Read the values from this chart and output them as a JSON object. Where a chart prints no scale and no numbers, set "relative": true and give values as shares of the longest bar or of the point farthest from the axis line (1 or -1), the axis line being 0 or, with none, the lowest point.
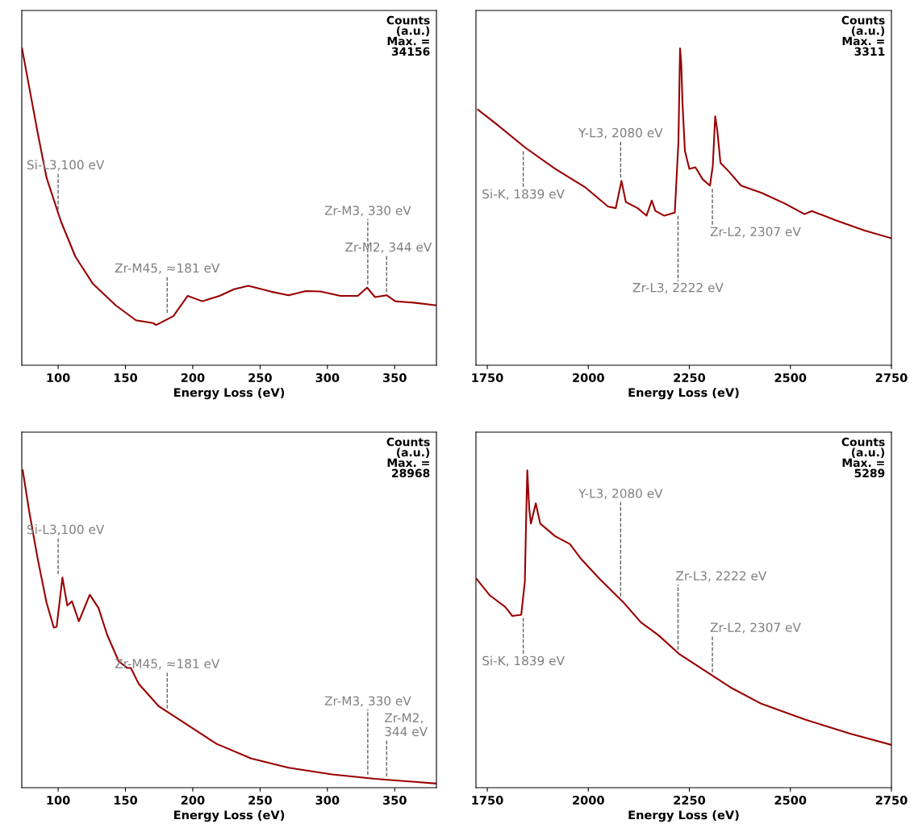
{
  "chart_data": [
    {
      "type": "line",
      "relative": true,
      "xlabel": "Energy Loss (eV)",
      "xlim": [
        73,
        381
      ],
      "xticks": [
        100,
        150,
        200,
        250,
        300,
        350
      ],
      "series": [
        {
          "color": "#990000",
          "x": [
            73.2,
            78.6,
            85,
            91.4,
            102,
            112.8,
            125.7,
            142.8,
            157.8,
            170.6,
            172.8,
            185.6,
            196.3,
            207,
            219.9,
            230.6,
            241.3,
            258.4,
            271.2,
            284.1,
            294.8,
            309.8,
            322.6,
            329.5,
            335.4,
            344,
            350.4,
            365.4,
            381
          ],
          "values": [
            1.0,
            0.876,
            0.73,
            0.592,
            0.455,
            0.343,
            0.258,
            0.189,
            0.142,
            0.133,
            0.127,
            0.155,
            0.219,
            0.202,
            0.219,
            0.24,
            0.251,
            0.232,
            0.221,
            0.234,
            0.233,
            0.219,
            0.219,
            0.245,
            0.215,
            0.221,
            0.202,
            0.197,
            0.189
          ]
        }
      ],
      "annotations": [
        "Counts\n(a.u.)\nMax. =\n34156"
      ],
      "ref_lines": [
        {
          "axis": "x",
          "value": 100,
          "label": "Si-L3,100 eV",
          "line_style": "dashed",
          "color": "#555555"
        },
        {
          "axis": "x",
          "value": 181,
          "label": "Zr-M45, ≈181 eV",
          "line_style": "dashed",
          "color": "#555555"
        },
        {
          "axis": "x",
          "value": 330,
          "label": "Zr-M3, 330 eV",
          "line_style": "dashed",
          "color": "#555555"
        },
        {
          "axis": "x",
          "value": 344,
          "label": "Zr-M2, 344 eV",
          "line_style": "dashed",
          "color": "#555555"
        }
      ]
    },
    {
      "type": "line",
      "relative": true,
      "xlabel": "Energy Loss (eV)",
      "xlim": [
        1722,
        2750
      ],
      "xticks": [
        1750,
        2000,
        2250,
        2500,
        2750
      ],
      "series": [
        {
          "color": "#990000",
          "x": [
            1727,
            1772,
            1845,
            1918,
            1991,
            2049,
            2068,
            2082,
            2093,
            2122,
            2144,
            2157,
            2166,
            2188,
            2214,
            2223,
            2227,
            2230,
            2233,
            2239,
            2250,
            2265,
            2283,
            2301,
            2308,
            2314,
            2319,
            2327,
            2349,
            2378,
            2429,
            2487,
            2535,
            2553,
            2611,
            2684,
            2750
          ],
          "values": [
            0.807,
            0.762,
            0.686,
            0.62,
            0.563,
            0.501,
            0.496,
            0.582,
            0.515,
            0.496,
            0.472,
            0.52,
            0.487,
            0.472,
            0.482,
            0.705,
            1.0,
            0.952,
            0.829,
            0.677,
            0.62,
            0.625,
            0.587,
            0.567,
            0.629,
            0.786,
            0.743,
            0.639,
            0.61,
            0.567,
            0.544,
            0.51,
            0.477,
            0.487,
            0.458,
            0.425,
            0.401
          ]
        }
      ],
      "annotations": [
        "Counts\n(a.u.)\nMax. =\n3311"
      ],
      "ref_lines": [
        {
          "axis": "x",
          "value": 1839,
          "label": "Si-K, 1839 eV",
          "line_style": "dashed",
          "color": "#555555"
        },
        {
          "axis": "x",
          "value": 2080,
          "label": "Y-L3, 2080 eV",
          "line_style": "dashed",
          "color": "#555555"
        },
        {
          "axis": "x",
          "value": 2222,
          "label": "Zr-L3, 2222 eV",
          "line_style": "dashed",
          "color": "#555555"
        },
        {
          "axis": "x",
          "value": 2307,
          "label": "Zr-L2, 2307 eV",
          "line_style": "dashed",
          "color": "#555555"
        }
      ]
    },
    {
      "type": "line",
      "relative": true,
      "xlabel": "Energy Loss (eV)",
      "xlim": [
        73,
        381
      ],
      "xticks": [
        100,
        150,
        200,
        250,
        300,
        350
      ],
      "series": [
        {
          "color": "#990000",
          "x": [
            73.7,
            78.6,
            85,
            91.4,
            96.8,
            98.9,
            103.2,
            106.8,
            110.3,
            115.4,
            123.5,
            130,
            136.4,
            145,
            151.4,
            154,
            159.9,
            174.9,
            196.3,
            217.7,
            243.4,
            271.2,
            303.3,
            335.4,
            381
          ],
          "values": [
            1.0,
            0.868,
            0.717,
            0.583,
            0.504,
            0.507,
            0.662,
            0.574,
            0.587,
            0.524,
            0.608,
            0.566,
            0.482,
            0.398,
            0.377,
            0.377,
            0.327,
            0.256,
            0.197,
            0.138,
            0.092,
            0.063,
            0.042,
            0.028,
            0.013
          ]
        }
      ],
      "annotations": [
        "Counts\n(a.u.)\nMax. =\n28968"
      ],
      "ref_lines": [
        {
          "axis": "x",
          "value": 100,
          "label": "Si-L3,100 eV",
          "line_style": "dashed",
          "color": "#555555"
        },
        {
          "axis": "x",
          "value": 181,
          "label": "Zr-M45, ≈181 eV",
          "line_style": "dashed",
          "color": "#555555"
        },
        {
          "axis": "x",
          "value": 330,
          "label": "Zr-M3, 330 eV",
          "line_style": "dashed",
          "color": "#555555"
        },
        {
          "axis": "x",
          "value": 344,
          "label": "Zr-M2,\n344 eV",
          "line_style": "dashed",
          "color": "#555555"
        }
      ]
    },
    {
      "type": "line",
      "relative": true,
      "xlabel": "Energy Loss (eV)",
      "xlim": [
        1722,
        2750
      ],
      "xticks": [
        1750,
        2000,
        2250,
        2500,
        2750
      ],
      "series": [
        {
          "color": "#990000",
          "x": [
            1724,
            1757,
            1794,
            1812,
            1834,
            1843,
            1846,
            1849,
            1854,
            1858,
            1870,
            1881,
            1918,
            1954,
            1984,
            2027,
            2086,
            2130,
            2173,
            2224,
            2283,
            2356,
            2429,
            2538,
            2648,
            2750
          ],
          "values": [
            0.657,
            0.605,
            0.57,
            0.541,
            0.545,
            0.649,
            0.837,
            1.0,
            0.876,
            0.832,
            0.896,
            0.832,
            0.792,
            0.768,
            0.718,
            0.659,
            0.585,
            0.521,
            0.481,
            0.422,
            0.373,
            0.313,
            0.264,
            0.214,
            0.17,
            0.135
          ]
        }
      ],
      "annotations": [
        "Counts\n(a.u.)\nMax. =\n5289"
      ],
      "ref_lines": [
        {
          "axis": "x",
          "value": 1839,
          "label": "Si-K, 1839 eV",
          "line_style": "dashed",
          "color": "#555555"
        },
        {
          "axis": "x",
          "value": 2080,
          "label": "Y-L3, 2080 eV",
          "line_style": "dashed",
          "color": "#555555"
        },
        {
          "axis": "x",
          "value": 2222,
          "label": "Zr-L3, 2222 eV",
          "line_style": "dashed",
          "color": "#555555"
        },
        {
          "axis": "x",
          "value": 2307,
          "label": "Zr-L2, 2307 eV",
          "line_style": "dashed",
          "color": "#555555"
        }
      ]
    }
  ]
}
